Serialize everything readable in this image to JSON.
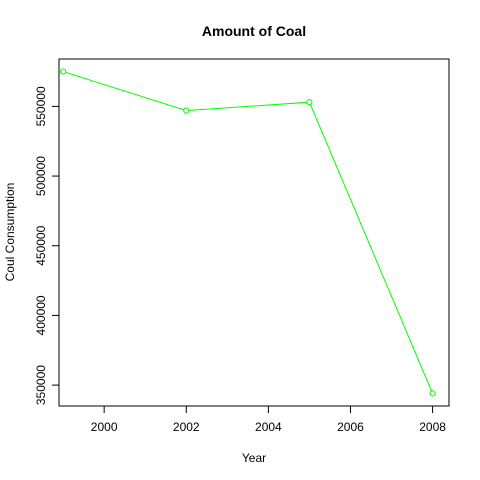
{
  "chart_data": {
    "type": "line",
    "title": "Amount of Coal",
    "xlabel": "Year",
    "ylabel": "Coul Consumption",
    "x": [
      1999,
      2002,
      2005,
      2008
    ],
    "series": [
      {
        "name": "Coal",
        "values": [
          575000,
          547000,
          553000,
          344000
        ],
        "color": "#00ff00"
      }
    ],
    "xlim": [
      1998.9,
      2008.4
    ],
    "ylim": [
      335000,
      584000
    ],
    "xticks": [
      2000,
      2002,
      2004,
      2006,
      2008
    ],
    "xtick_labels": [
      "2000",
      "2002",
      "2004",
      "2006",
      "2008"
    ],
    "yticks": [
      350000,
      400000,
      450000,
      500000,
      550000
    ],
    "ytick_labels": [
      "350000",
      "400000",
      "450000",
      "500000",
      "550000"
    ],
    "grid": false,
    "marker": "open-circle"
  }
}
